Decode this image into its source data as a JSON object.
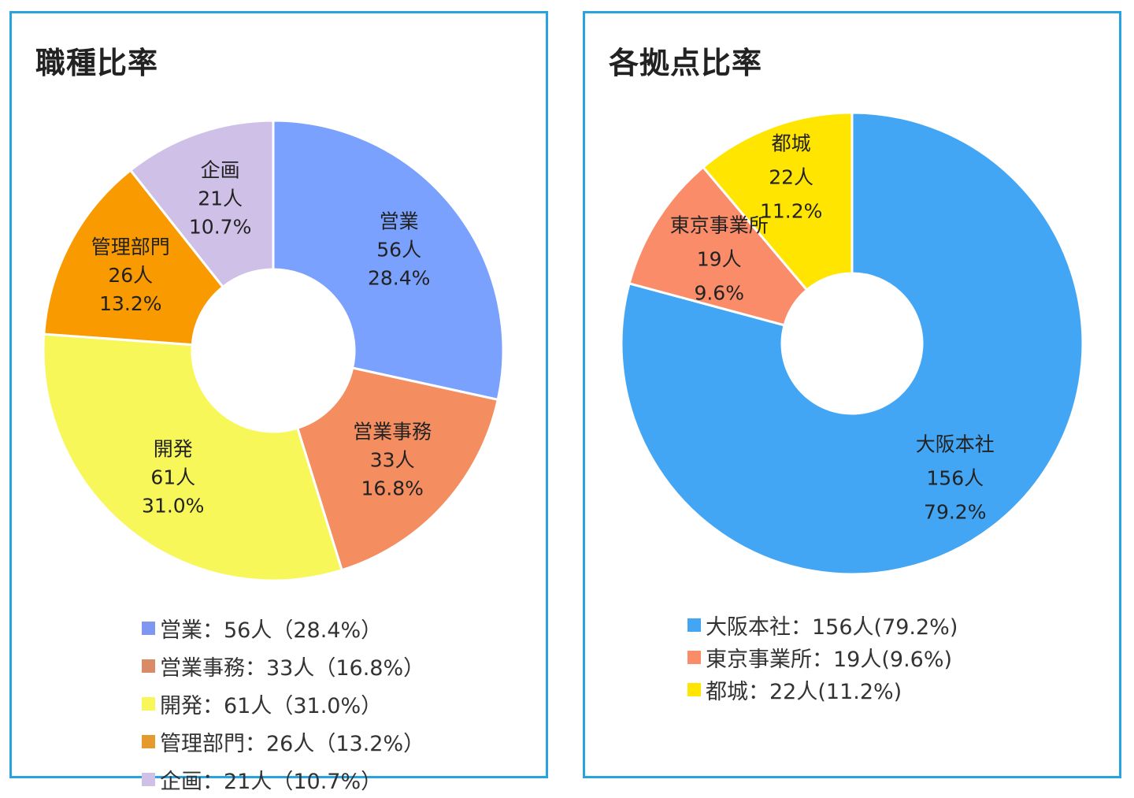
{
  "chart_data": [
    {
      "type": "donut",
      "title": "職種比率",
      "categories": [
        "営業",
        "営業事務",
        "開発",
        "管理部門",
        "企画"
      ],
      "values": [
        56,
        33,
        61,
        26,
        21
      ],
      "counts": [
        "56人",
        "33人",
        "61人",
        "26人",
        "21人"
      ],
      "percents": [
        "28.4%",
        "16.8%",
        "31.0%",
        "13.2%",
        "10.7%"
      ],
      "colors": [
        "#79a1fd",
        "#f48d60",
        "#f7f75a",
        "#f99a00",
        "#cfc0e8"
      ],
      "legend_colors": [
        "#7f97f1",
        "#d98b66",
        "#f7f75a",
        "#e59a2e",
        "#cfc0e8"
      ],
      "legend": [
        "営業：56人（28.4%）",
        "営業事務：33人（16.8%）",
        "開発：61人（31.0%）",
        "管理部門：26人（13.2%）",
        "企画：21人（10.7%）"
      ],
      "legend_position": "bottom"
    },
    {
      "type": "donut",
      "title": "各拠点比率",
      "categories": [
        "大阪本社",
        "東京事業所",
        "都城"
      ],
      "values": [
        156,
        19,
        22
      ],
      "counts": [
        "156人",
        "19人",
        "22人"
      ],
      "percents": [
        "79.2%",
        "9.6%",
        "11.2%"
      ],
      "colors": [
        "#43a6f5",
        "#fb8c69",
        "#ffe500"
      ],
      "legend_colors": [
        "#43a6f5",
        "#fb8c69",
        "#ffe500"
      ],
      "legend": [
        "大阪本社：156人(79.2%)",
        "東京事業所：19人(9.6%)",
        "都城：22人(11.2%)"
      ],
      "legend_position": "bottom"
    }
  ]
}
